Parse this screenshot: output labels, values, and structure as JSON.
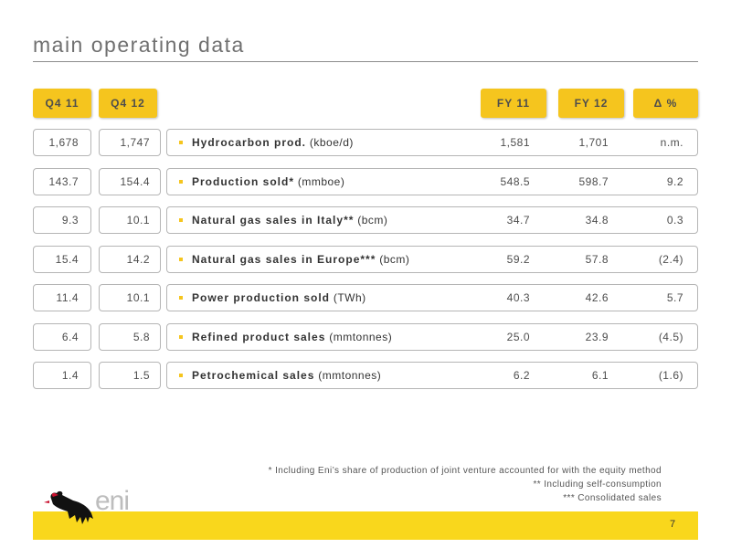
{
  "title": "main operating data",
  "headers": {
    "q4_11": "Q4 11",
    "q4_12": "Q4 12",
    "fy_11": "FY 11",
    "fy_12": "FY 12",
    "delta": "Δ %"
  },
  "rows": [
    {
      "q4_11": "1,678",
      "q4_12": "1,747",
      "label_bold": "Hydrocarbon prod.",
      "label_unit": " (kboe/d)",
      "fy_11": "1,581",
      "fy_12": "1,701",
      "delta": "n.m."
    },
    {
      "q4_11": "143.7",
      "q4_12": "154.4",
      "label_bold": "Production  sold*",
      "label_unit": " (mmboe)",
      "fy_11": "548.5",
      "fy_12": "598.7",
      "delta": "9.2"
    },
    {
      "q4_11": "9.3",
      "q4_12": "10.1",
      "label_bold": "Natural gas sales in Italy**",
      "label_unit": " (bcm)",
      "fy_11": "34.7",
      "fy_12": "34.8",
      "delta": "0.3"
    },
    {
      "q4_11": "15.4",
      "q4_12": "14.2",
      "label_bold": "Natural gas sales in Europe***",
      "label_unit": " (bcm)",
      "fy_11": "59.2",
      "fy_12": "57.8",
      "delta": "(2.4)"
    },
    {
      "q4_11": "11.4",
      "q4_12": "10.1",
      "label_bold": "Power production sold",
      "label_unit": " (TWh)",
      "fy_11": "40.3",
      "fy_12": "42.6",
      "delta": "5.7"
    },
    {
      "q4_11": "6.4",
      "q4_12": "5.8",
      "label_bold": "Refined product sales",
      "label_unit": " (mmtonnes)",
      "fy_11": "25.0",
      "fy_12": "23.9",
      "delta": "(4.5)"
    },
    {
      "q4_11": "1.4",
      "q4_12": "1.5",
      "label_bold": "Petrochemical sales",
      "label_unit": " (mmtonnes)",
      "fy_11": "6.2",
      "fy_12": "6.1",
      "delta": "(1.6)"
    }
  ],
  "footnotes": [
    "*   Including Eni’s share of production of joint venture accounted for with the equity method",
    "**   Including self-consumption",
    "***   Consolidated sales"
  ],
  "logo_text": "eni",
  "page_number": "7",
  "colors": {
    "accent": "#f5c51e",
    "footer": "#f9d71c",
    "border": "#b5b5b5"
  }
}
